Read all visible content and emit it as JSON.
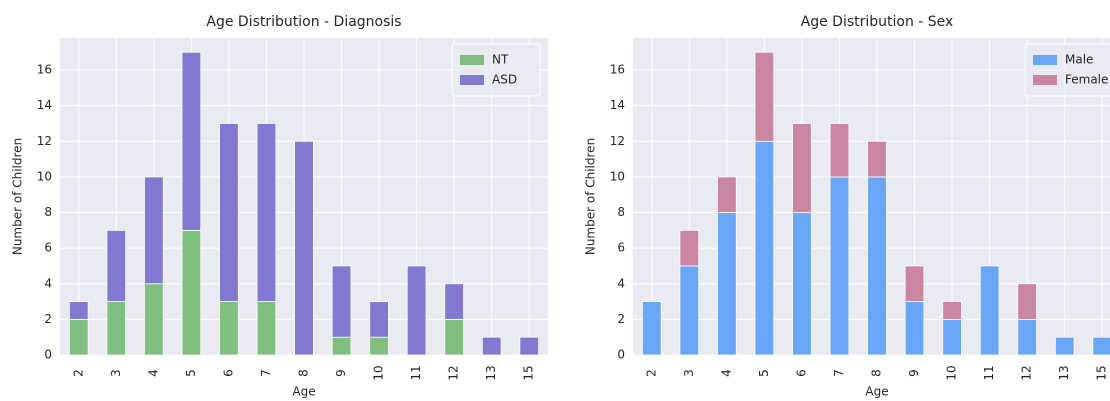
{
  "chart_data": [
    {
      "type": "bar",
      "stacked": true,
      "title": "Age Distribution - Diagnosis",
      "x_label": "Age",
      "y_label": "Number of Children",
      "categories": [
        "2",
        "3",
        "4",
        "5",
        "6",
        "7",
        "8",
        "9",
        "10",
        "11",
        "12",
        "13",
        "15"
      ],
      "series": [
        {
          "name": "NT",
          "color": "#80bf80",
          "values": [
            2,
            3,
            4,
            7,
            3,
            3,
            0,
            1,
            1,
            0,
            2,
            0,
            0
          ]
        },
        {
          "name": "ASD",
          "color": "#8279d3",
          "values": [
            1,
            4,
            6,
            10,
            10,
            10,
            12,
            4,
            2,
            5,
            2,
            1,
            1
          ]
        }
      ],
      "ylim": [
        0,
        17.8
      ],
      "yticks": [
        0,
        2,
        4,
        6,
        8,
        10,
        12,
        14,
        16
      ],
      "grid": true,
      "legend": "upper right"
    },
    {
      "type": "bar",
      "stacked": true,
      "title": "Age Distribution - Sex",
      "x_label": "Age",
      "y_label": "Number of Children",
      "categories": [
        "2",
        "3",
        "4",
        "5",
        "6",
        "7",
        "8",
        "9",
        "10",
        "11",
        "12",
        "13",
        "15"
      ],
      "series": [
        {
          "name": "Male",
          "color": "#6aa6f6",
          "values": [
            3,
            5,
            8,
            12,
            8,
            10,
            10,
            3,
            2,
            5,
            2,
            1,
            1
          ]
        },
        {
          "name": "Female",
          "color": "#ca86a0",
          "values": [
            0,
            2,
            2,
            5,
            5,
            3,
            2,
            2,
            1,
            0,
            2,
            0,
            0
          ]
        }
      ],
      "ylim": [
        0,
        17.8
      ],
      "yticks": [
        0,
        2,
        4,
        6,
        8,
        10,
        12,
        14,
        16
      ],
      "grid": true,
      "legend": "upper right"
    }
  ]
}
